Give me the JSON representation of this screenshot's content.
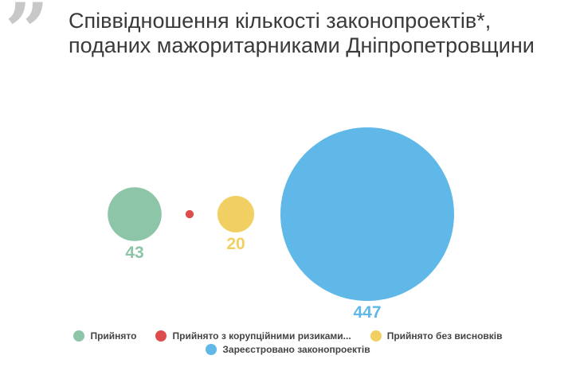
{
  "title": "Співвідношення кількості законопроектів*, поданих мажоритарниками Дніпропетровщини",
  "quote_glyph": "”",
  "chart_data": {
    "type": "bubble",
    "series": [
      {
        "name": "Прийнято",
        "value": 43,
        "label": "43",
        "color": "#8cc5a8"
      },
      {
        "name": "Прийнято з корупційними ризиками...",
        "value": 1,
        "label": "",
        "color": "#de4c4c"
      },
      {
        "name": "Прийнято без висновків",
        "value": 20,
        "label": "20",
        "color": "#f2cf62"
      },
      {
        "name": "Зареєстровано законопроектів",
        "value": 447,
        "label": "447",
        "color": "#5fb8e8"
      }
    ],
    "legend_position": "bottom",
    "grid": false
  }
}
